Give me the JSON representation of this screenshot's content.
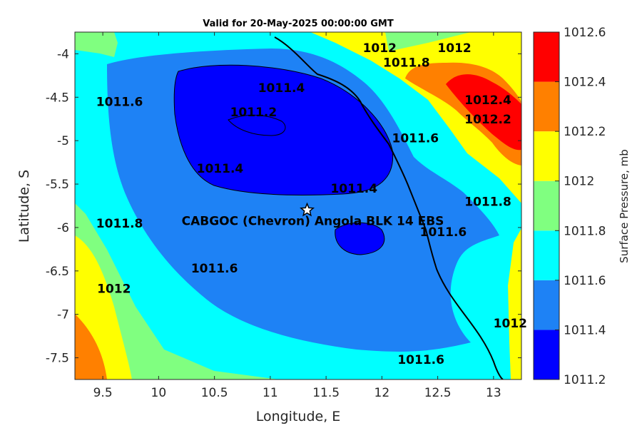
{
  "chart_data": {
    "type": "heatmap",
    "title": "Valid for 20-May-2025 00:00:00 GMT",
    "xlabel": "Longitude, E",
    "ylabel": "Latitude, S",
    "xlim": [
      9.25,
      13.25
    ],
    "ylim": [
      -7.75,
      -3.75
    ],
    "xticks": [
      9.5,
      10,
      10.5,
      11,
      11.5,
      12,
      12.5,
      13
    ],
    "xtick_labels": [
      "9.5",
      "10",
      "10.5",
      "11",
      "11.5",
      "12",
      "12.5",
      "13"
    ],
    "yticks": [
      -4,
      -4.5,
      -5,
      -5.5,
      -6,
      -6.5,
      -7,
      -7.5
    ],
    "ytick_labels": [
      "-4",
      "-4.5",
      "-5",
      "-5.5",
      "-6",
      "-6.5",
      "-7",
      "-7.5"
    ],
    "colorbar": {
      "label": "Surface Pressure, mb",
      "levels": [
        1011.2,
        1011.4,
        1011.6,
        1011.8,
        1012,
        1012.2,
        1012.4,
        1012.6
      ],
      "level_labels": [
        "1011.2",
        "1011.4",
        "1011.6",
        "1011.8",
        "1012",
        "1012.2",
        "1012.4",
        "1012.6"
      ],
      "colors": [
        "#0000ff",
        "#1e82f5",
        "#00ffff",
        "#80ff80",
        "#ffff00",
        "#ff8000",
        "#ff0000",
        "#800000"
      ]
    },
    "site": {
      "name": "CABGOC (Chevron)  Angola BLK 14  EBS",
      "lon": 11.33,
      "lat": -5.8
    },
    "contour_labels": [
      {
        "text": "1011.2",
        "lon": 10.85,
        "lat": -4.72
      },
      {
        "text": "1011.4",
        "lon": 11.1,
        "lat": -4.44
      },
      {
        "text": "1011.4",
        "lon": 10.55,
        "lat": -5.37
      },
      {
        "text": "1011.4",
        "lon": 11.75,
        "lat": -5.6
      },
      {
        "text": "1011.6",
        "lon": 9.65,
        "lat": -4.6
      },
      {
        "text": "1011.6",
        "lon": 12.3,
        "lat": -5.02
      },
      {
        "text": "1011.6",
        "lon": 12.55,
        "lat": -6.1
      },
      {
        "text": "1011.6",
        "lon": 10.5,
        "lat": -6.52
      },
      {
        "text": "1011.6",
        "lon": 12.35,
        "lat": -7.57
      },
      {
        "text": "1011.8",
        "lon": 12.22,
        "lat": -4.15
      },
      {
        "text": "1011.8",
        "lon": 9.65,
        "lat": -6.0
      },
      {
        "text": "1011.8",
        "lon": 12.95,
        "lat": -5.75
      },
      {
        "text": "1012",
        "lon": 11.98,
        "lat": -3.98
      },
      {
        "text": "1012",
        "lon": 12.65,
        "lat": -3.98
      },
      {
        "text": "1012",
        "lon": 9.6,
        "lat": -6.75
      },
      {
        "text": "1012",
        "lon": 13.15,
        "lat": -7.15
      },
      {
        "text": "1012.2",
        "lon": 12.95,
        "lat": -4.8
      },
      {
        "text": "1012.4",
        "lon": 12.95,
        "lat": -4.58
      }
    ]
  }
}
